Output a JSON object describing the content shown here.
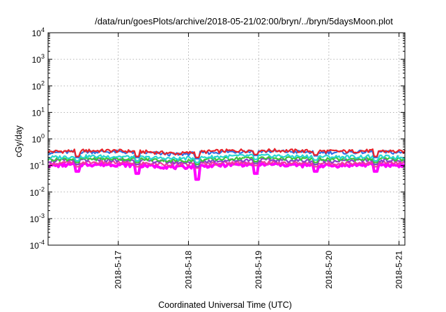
{
  "chart_data": {
    "type": "line",
    "title": "/data/run/goesPlots/archive/2018-05-21/02:00/bryn/../bryn/5daysMoon.plot",
    "xlabel": "Coordinated Universal Time (UTC)",
    "ylabel": "cGy/day",
    "yscale": "log",
    "ylim": [
      0.0001,
      10000
    ],
    "yticks": [
      {
        "base": "10",
        "exp": "-4"
      },
      {
        "base": "10",
        "exp": "-3"
      },
      {
        "base": "10",
        "exp": "-2"
      },
      {
        "base": "10",
        "exp": "-1"
      },
      {
        "base": "10",
        "exp": "0"
      },
      {
        "base": "10",
        "exp": "1"
      },
      {
        "base": "10",
        "exp": "2"
      },
      {
        "base": "10",
        "exp": "3"
      },
      {
        "base": "10",
        "exp": "4"
      }
    ],
    "xlim": [
      "2018-05-16T00:00",
      "2018-05-21T02:00"
    ],
    "xticks": [
      "2018-5-17",
      "2018-5-18",
      "2018-5-19",
      "2018-5-20",
      "2018-5-21"
    ],
    "grid": true,
    "samples_per_day": 48,
    "series": [
      {
        "color": "#e8242c",
        "day_levels": [
          0.33,
          0.36,
          0.36,
          0.33,
          0.28,
          0.34,
          0.37,
          0.37,
          0.35,
          0.34,
          0.36,
          0.33
        ],
        "dips": [
          0.22,
          0.22,
          0.2,
          0.26,
          0.25,
          0.22
        ]
      },
      {
        "color": "#2f6fe6",
        "day_levels": [
          0.3,
          0.33,
          0.33,
          0.3,
          0.26,
          0.31,
          0.34,
          0.34,
          0.32,
          0.31,
          0.33,
          0.3
        ],
        "dips": [
          0.2,
          0.2,
          0.18,
          0.24,
          0.23,
          0.2
        ]
      },
      {
        "color": "#28d4d0",
        "day_levels": [
          0.2,
          0.22,
          0.22,
          0.2,
          0.18,
          0.21,
          0.23,
          0.23,
          0.22,
          0.21,
          0.22,
          0.2
        ],
        "dips": [
          0.15,
          0.15,
          0.13,
          0.17,
          0.16,
          0.15
        ]
      },
      {
        "color": "#3fc43a",
        "day_levels": [
          0.17,
          0.18,
          0.18,
          0.17,
          0.15,
          0.17,
          0.19,
          0.19,
          0.18,
          0.17,
          0.18,
          0.17
        ],
        "dips": [
          0.13,
          0.13,
          0.11,
          0.14,
          0.13,
          0.13
        ]
      },
      {
        "color": "#8a3fc8",
        "day_levels": [
          0.15,
          0.16,
          0.16,
          0.15,
          0.13,
          0.15,
          0.16,
          0.16,
          0.15,
          0.15,
          0.16,
          0.15
        ],
        "dips": [
          0.11,
          0.11,
          0.09,
          0.12,
          0.11,
          0.11
        ]
      },
      {
        "color": "#f03aa0",
        "day_levels": [
          0.12,
          0.13,
          0.13,
          0.12,
          0.11,
          0.12,
          0.13,
          0.13,
          0.12,
          0.12,
          0.13,
          0.12
        ],
        "dips": [
          0.09,
          0.09,
          0.08,
          0.1,
          0.09,
          0.09
        ]
      },
      {
        "color": "#ff00ff",
        "band": true,
        "day_levels": [
          0.1,
          0.11,
          0.11,
          0.1,
          0.085,
          0.1,
          0.11,
          0.11,
          0.1,
          0.1,
          0.11,
          0.1
        ],
        "dips": [
          0.06,
          0.05,
          0.03,
          0.05,
          0.06,
          0.06
        ]
      }
    ]
  }
}
